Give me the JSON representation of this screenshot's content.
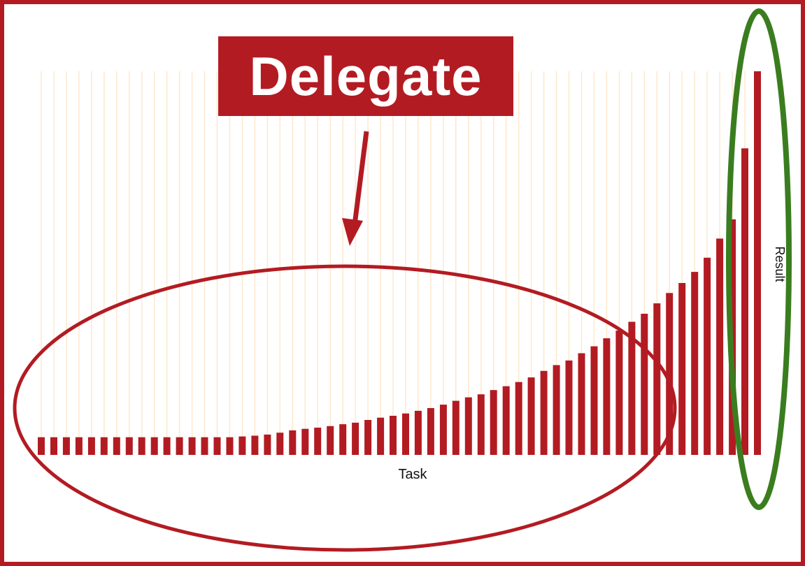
{
  "annotation": {
    "label": "Delegate",
    "frame_color": "#b31b22",
    "title_fill": "#b31b22",
    "title_text_color": "#ffffff",
    "task_ellipse_color": "#b31b22",
    "result_ellipse_color": "#3a7d1f",
    "arrow_color": "#b31b22",
    "gridline_color": "#fde8cc"
  },
  "chart_data": {
    "type": "bar",
    "xlabel": "Task",
    "ylabel": "Result",
    "grid": true,
    "bar_color": "#b31b22",
    "ylim": [
      0,
      100
    ],
    "values": [
      4.6,
      4.6,
      4.6,
      4.6,
      4.6,
      4.6,
      4.6,
      4.6,
      4.6,
      4.6,
      4.6,
      4.6,
      4.6,
      4.6,
      4.6,
      4.6,
      4.8,
      5.0,
      5.3,
      5.8,
      6.4,
      6.8,
      7.1,
      7.5,
      8.0,
      8.4,
      9.1,
      9.7,
      10.2,
      10.8,
      11.5,
      12.2,
      13.1,
      14.1,
      15.0,
      15.8,
      16.9,
      17.9,
      19.0,
      20.2,
      21.9,
      23.4,
      24.6,
      26.5,
      28.3,
      30.4,
      32.4,
      34.7,
      36.8,
      39.5,
      42.2,
      44.8,
      47.7,
      51.4,
      56.4,
      61.4,
      79.9,
      100.0
    ]
  }
}
